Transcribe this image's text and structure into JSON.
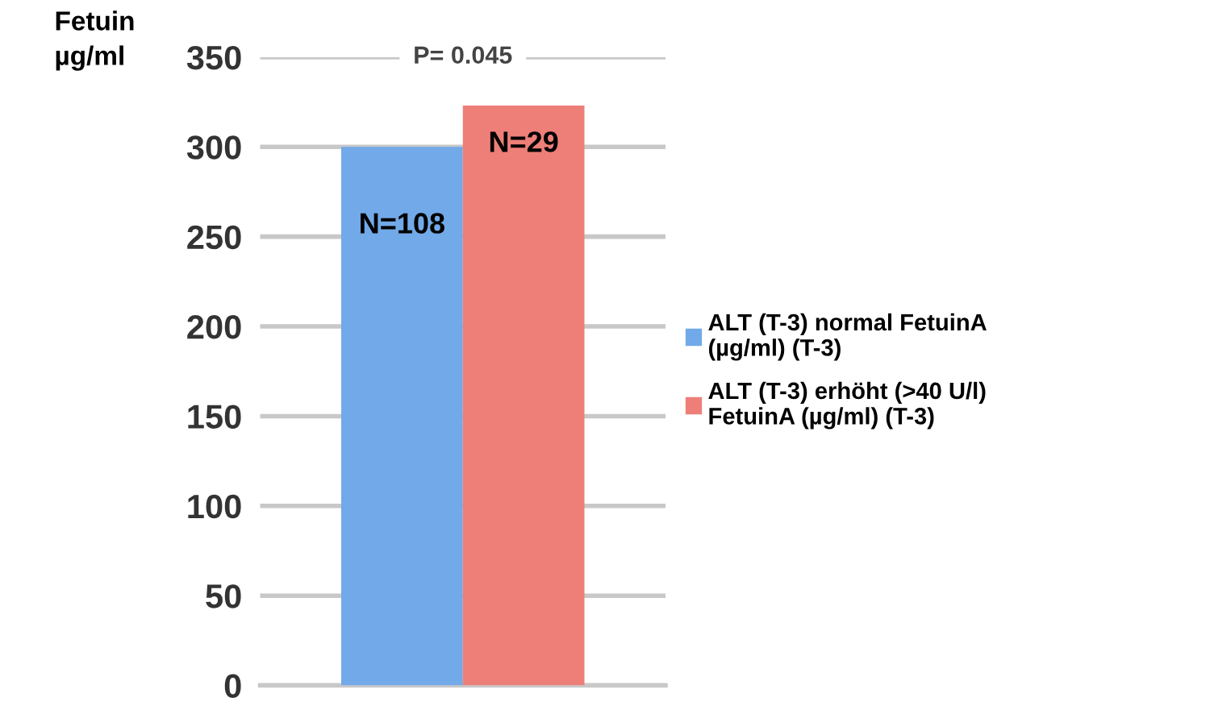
{
  "chart_data": {
    "type": "bar",
    "ylabel": "Fetuin\nµg/ml",
    "categories": [
      null
    ],
    "series": [
      {
        "name": "ALT (T-3) normal FetuinA\n(µg/ml) (T-3)",
        "color": "#72a9e8",
        "values": [
          300
        ]
      },
      {
        "name": "ALT (T-3) erhöht (>40 U/l)\nFetuinA (µg/ml) (T-3)",
        "color": "#ee7f78",
        "values": [
          323
        ]
      }
    ],
    "annotations": [
      "P= 0.045",
      "N=108",
      "N=29"
    ],
    "ylim": [
      0,
      350
    ],
    "yticks": [
      0,
      50,
      100,
      150,
      200,
      250,
      300,
      350
    ],
    "grid": "y",
    "legend": "right"
  }
}
